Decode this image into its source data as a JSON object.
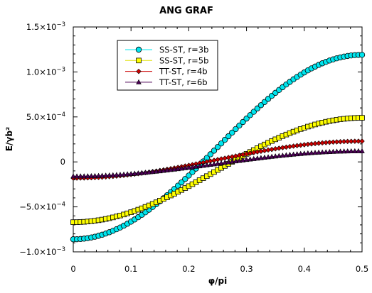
{
  "chart_data": {
    "type": "scatter",
    "title": "ANG GRAF",
    "xlabel": "φ/pi",
    "ylabel": "E/γb²",
    "xlim": [
      0,
      0.5
    ],
    "ylim": [
      -0.001,
      0.0015
    ],
    "grid": false,
    "legend_position": "top-left",
    "x_ticks": [
      {
        "value": 0,
        "label": "0"
      },
      {
        "value": 0.1,
        "label": "0.1"
      },
      {
        "value": 0.2,
        "label": "0.2"
      },
      {
        "value": 0.3,
        "label": "0.3"
      },
      {
        "value": 0.4,
        "label": "0.4"
      },
      {
        "value": 0.5,
        "label": "0.5"
      }
    ],
    "y_ticks": [
      {
        "value": 0.0015,
        "mant": "1.5×10",
        "exp": "−3"
      },
      {
        "value": 0.001,
        "mant": "1.0×10",
        "exp": "−3"
      },
      {
        "value": 0.0005,
        "mant": "5.0×10",
        "exp": "−4"
      },
      {
        "value": 0,
        "mant": "0",
        "exp": ""
      },
      {
        "value": -0.0005,
        "mant": "−5.0×10",
        "exp": "−4"
      },
      {
        "value": -0.001,
        "mant": "−1.0×10",
        "exp": "−3"
      }
    ],
    "x_step": 0.00625,
    "x_count": 81,
    "series": [
      {
        "name": "SS-ST, r=3b",
        "marker": "circle",
        "color": "#00e5ee",
        "line_color": "#00e5ee",
        "y_at_0": -0.00086,
        "y_at_half": 0.00119
      },
      {
        "name": "SS-ST, r=5b",
        "marker": "square",
        "color": "#ffff00",
        "line_color": "#e0e000",
        "y_at_0": -0.00067,
        "y_at_half": 0.00049
      },
      {
        "name": "TT-ST, r=4b",
        "marker": "diamond",
        "color": "#cc0000",
        "line_color": "#cc0000",
        "y_at_0": -0.00018,
        "y_at_half": 0.00023
      },
      {
        "name": "TT-ST, r=6b",
        "marker": "triangle",
        "color": "#4b0055",
        "line_color": "#4b0055",
        "y_at_0": -0.00016,
        "y_at_half": 0.00012
      }
    ]
  }
}
